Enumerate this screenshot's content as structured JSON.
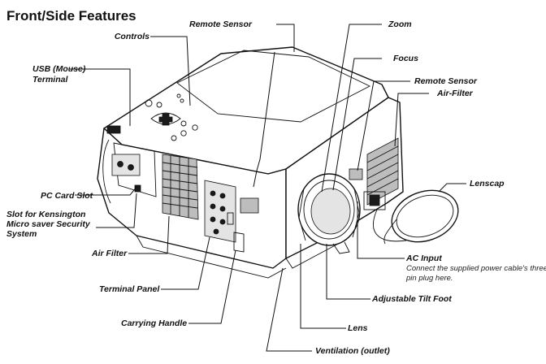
{
  "title": "Front/Side Features",
  "labels": {
    "remote_sensor_top": "Remote Sensor",
    "zoom": "Zoom",
    "controls": "Controls",
    "focus": "Focus",
    "usb_line1": "USB (Mouse)",
    "usb_line2": "Terminal",
    "remote_sensor_side": "Remote Sensor",
    "air_filter_side": "Air-Filter",
    "lenscap": "Lenscap",
    "pc_card_slot": "PC Card Slot",
    "kensington_line1": "Slot for Kensington",
    "kensington_line2": "Micro saver Security",
    "kensington_line3": "System",
    "air_filter_front": "Air Filter",
    "ac_input": "AC Input",
    "ac_note_line1": "Connect the supplied power cable's three-",
    "ac_note_line2": "pin plug here.",
    "adjustable_tilt_foot": "Adjustable Tilt Foot",
    "terminal_panel": "Terminal Panel",
    "carrying_handle": "Carrying Handle",
    "lens": "Lens",
    "ventilation": "Ventilation (outlet)"
  }
}
